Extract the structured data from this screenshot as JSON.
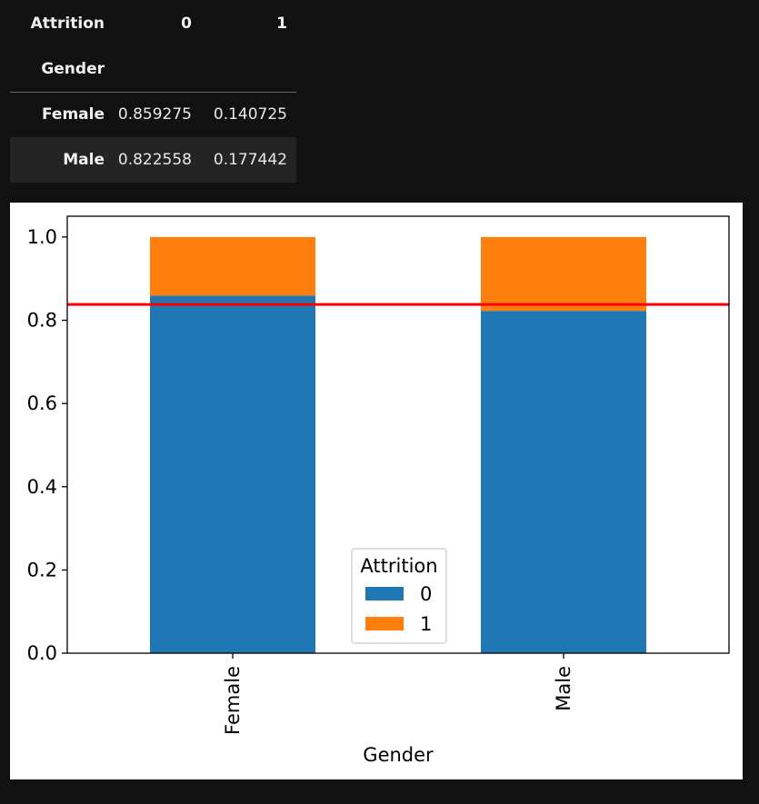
{
  "table": {
    "columns_name": "Attrition",
    "columns": [
      "0",
      "1"
    ],
    "index_name": "Gender",
    "rows": [
      {
        "label": "Female",
        "values": [
          "0.859275",
          "0.140725"
        ]
      },
      {
        "label": "Male",
        "values": [
          "0.822558",
          "0.177442"
        ]
      }
    ]
  },
  "chart_data": {
    "type": "bar",
    "stacked": true,
    "categories": [
      "Female",
      "Male"
    ],
    "series": [
      {
        "name": "0",
        "values": [
          0.859275,
          0.822558
        ],
        "color": "#1f77b4"
      },
      {
        "name": "1",
        "values": [
          0.140725,
          0.177442
        ],
        "color": "#ff7f0e"
      }
    ],
    "xlabel": "Gender",
    "ylabel": "",
    "ylim": [
      0,
      1.05
    ],
    "yticks": [
      "0.0",
      "0.2",
      "0.4",
      "0.6",
      "0.8",
      "1.0"
    ],
    "legend_title": "Attrition",
    "legend_placement": "lower-center",
    "reference_line": {
      "y": 0.838,
      "color": "#ff0000"
    },
    "grid": false
  }
}
